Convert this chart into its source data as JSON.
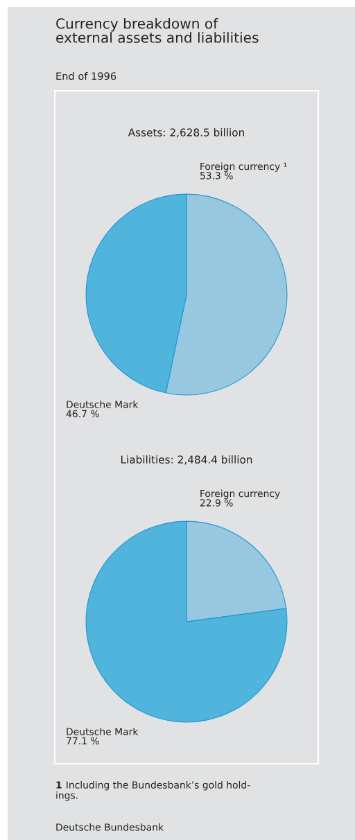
{
  "chart_data": [
    {
      "type": "pie",
      "title": "Currency breakdown of\nexternal assets and liabilities",
      "subtitle": "End of 1996",
      "annotations": [
        "Assets: 2,628.5 billion"
      ],
      "categories": [
        "Foreign currency ¹",
        "Deutsche Mark"
      ],
      "values": [
        53.3,
        46.7
      ],
      "colors": [
        "#98c8e0",
        "#50b4dc"
      ],
      "value_labels": [
        "53.3 %",
        "46.7 %"
      ]
    },
    {
      "type": "pie",
      "title": "Liabilities: 2,484.4 billion",
      "annotations": [
        "1 Including the Bundesbank’s gold hold-\nings.",
        "Deutsche Bundesbank"
      ],
      "categories": [
        "Foreign currency",
        "Deutsche Mark"
      ],
      "values": [
        22.9,
        77.1
      ],
      "colors": [
        "#98c8e0",
        "#50b4dc"
      ],
      "value_labels": [
        "22.9 %",
        "77.1 %"
      ]
    }
  ]
}
